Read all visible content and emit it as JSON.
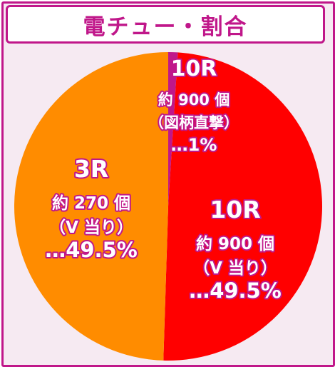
{
  "title": "電チュー・割合",
  "chart_data": {
    "type": "pie",
    "slices": [
      {
        "lines": [
          "10R",
          "約 900 個",
          "（図柄直撃）",
          "…1%"
        ],
        "value": 1,
        "color": "#c0178a"
      },
      {
        "lines": [
          "10R",
          "約 900 個",
          "（V 当り）",
          "…49.5%"
        ],
        "value": 49.5,
        "color": "#ff0000"
      },
      {
        "lines": [
          "3R",
          "約 270 個",
          "（V 当り）",
          "…49.5%"
        ],
        "value": 49.5,
        "color": "#ff8c00"
      }
    ]
  }
}
